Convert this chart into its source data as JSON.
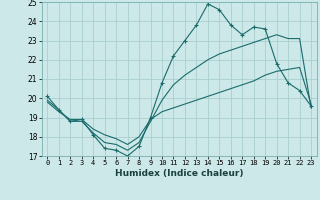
{
  "title": "",
  "xlabel": "Humidex (Indice chaleur)",
  "ylabel": "",
  "background_color": "#cde8e8",
  "grid_color": "#aacece",
  "line_color": "#1a6b6b",
  "xlim": [
    -0.5,
    23.5
  ],
  "ylim": [
    17,
    25
  ],
  "yticks": [
    17,
    18,
    19,
    20,
    21,
    22,
    23,
    24,
    25
  ],
  "xticks": [
    0,
    1,
    2,
    3,
    4,
    5,
    6,
    7,
    8,
    9,
    10,
    11,
    12,
    13,
    14,
    15,
    16,
    17,
    18,
    19,
    20,
    21,
    22,
    23
  ],
  "line1_x": [
    0,
    1,
    2,
    3,
    4,
    5,
    6,
    7,
    8,
    9,
    10,
    11,
    12,
    13,
    14,
    15,
    16,
    17,
    18,
    19,
    20,
    21,
    22,
    23
  ],
  "line1_y": [
    20.1,
    19.4,
    18.8,
    18.9,
    18.1,
    17.4,
    17.3,
    17.0,
    17.5,
    19.0,
    20.8,
    22.2,
    23.0,
    23.8,
    24.9,
    24.6,
    23.8,
    23.3,
    23.7,
    23.6,
    21.8,
    20.8,
    20.4,
    19.6
  ],
  "line2_x": [
    0,
    1,
    2,
    3,
    4,
    5,
    6,
    7,
    8,
    9,
    10,
    11,
    12,
    13,
    14,
    15,
    16,
    17,
    18,
    19,
    20,
    21,
    22,
    23
  ],
  "line2_y": [
    19.8,
    19.3,
    18.9,
    18.9,
    18.4,
    18.1,
    17.9,
    17.6,
    18.0,
    18.9,
    19.3,
    19.5,
    19.7,
    19.9,
    20.1,
    20.3,
    20.5,
    20.7,
    20.9,
    21.2,
    21.4,
    21.5,
    21.6,
    19.7
  ],
  "line3_x": [
    0,
    1,
    2,
    3,
    4,
    5,
    6,
    7,
    8,
    9,
    10,
    11,
    12,
    13,
    14,
    15,
    16,
    17,
    18,
    19,
    20,
    21,
    22,
    23
  ],
  "line3_y": [
    19.9,
    19.4,
    18.8,
    18.8,
    18.2,
    17.7,
    17.6,
    17.3,
    17.7,
    18.8,
    19.9,
    20.7,
    21.2,
    21.6,
    22.0,
    22.3,
    22.5,
    22.7,
    22.9,
    23.1,
    23.3,
    23.1,
    23.1,
    19.5
  ]
}
